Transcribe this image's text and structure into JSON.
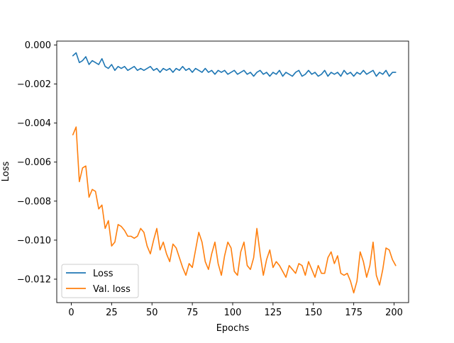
{
  "colors": {
    "series_loss": "#1f77b4",
    "series_val_loss": "#ff7f0e",
    "axis": "#000000",
    "background": "#ffffff"
  },
  "chart_data": {
    "type": "line",
    "title": "",
    "xlabel": "Epochs",
    "ylabel": "Loss",
    "xlim": [
      -9,
      209
    ],
    "ylim": [
      -0.0132,
      0.0002
    ],
    "xticks": [
      0,
      25,
      50,
      75,
      100,
      125,
      150,
      175,
      200
    ],
    "xtick_labels": [
      "0",
      "25",
      "50",
      "75",
      "100",
      "125",
      "150",
      "175",
      "200"
    ],
    "yticks": [
      0.0,
      -0.002,
      -0.004,
      -0.006,
      -0.008,
      -0.01,
      -0.012
    ],
    "ytick_labels": [
      "0.000",
      "−0.002",
      "−0.004",
      "−0.006",
      "−0.008",
      "−0.010",
      "−0.012"
    ],
    "grid": false,
    "legend": {
      "placement": "lower-left",
      "entries": [
        "Loss",
        "Val. loss"
      ]
    },
    "series": [
      {
        "name": "Loss",
        "color": "#1f77b4",
        "x": [
          1,
          3,
          5,
          7,
          9,
          11,
          13,
          15,
          17,
          19,
          21,
          23,
          25,
          27,
          29,
          31,
          33,
          35,
          37,
          39,
          41,
          43,
          45,
          47,
          49,
          51,
          53,
          55,
          57,
          59,
          61,
          63,
          65,
          67,
          69,
          71,
          73,
          75,
          77,
          79,
          81,
          83,
          85,
          87,
          89,
          91,
          93,
          95,
          97,
          99,
          101,
          103,
          105,
          107,
          109,
          111,
          113,
          115,
          117,
          119,
          121,
          123,
          125,
          127,
          129,
          131,
          133,
          135,
          137,
          139,
          141,
          143,
          145,
          147,
          149,
          151,
          153,
          155,
          157,
          159,
          161,
          163,
          165,
          167,
          169,
          171,
          173,
          175,
          177,
          179,
          181,
          183,
          185,
          187,
          189,
          191,
          193,
          195,
          197,
          199,
          201
        ],
        "y": [
          -0.00055,
          -0.0004,
          -0.0009,
          -0.0008,
          -0.0006,
          -0.001,
          -0.0008,
          -0.0009,
          -0.001,
          -0.0007,
          -0.0011,
          -0.0012,
          -0.001,
          -0.0013,
          -0.0011,
          -0.0012,
          -0.0011,
          -0.0013,
          -0.0012,
          -0.0011,
          -0.0013,
          -0.0012,
          -0.0013,
          -0.0012,
          -0.0011,
          -0.0013,
          -0.0012,
          -0.0014,
          -0.0012,
          -0.0013,
          -0.0012,
          -0.0014,
          -0.0012,
          -0.0013,
          -0.0011,
          -0.0013,
          -0.0012,
          -0.0014,
          -0.0012,
          -0.0013,
          -0.0014,
          -0.0012,
          -0.0014,
          -0.0013,
          -0.0015,
          -0.0013,
          -0.0014,
          -0.0013,
          -0.0015,
          -0.0014,
          -0.0013,
          -0.0015,
          -0.0014,
          -0.0013,
          -0.0015,
          -0.0014,
          -0.0016,
          -0.0014,
          -0.0013,
          -0.0015,
          -0.0014,
          -0.0016,
          -0.0014,
          -0.0015,
          -0.0013,
          -0.0016,
          -0.0014,
          -0.0015,
          -0.0016,
          -0.0014,
          -0.0013,
          -0.0016,
          -0.0015,
          -0.0013,
          -0.0015,
          -0.0014,
          -0.0016,
          -0.0015,
          -0.0013,
          -0.0016,
          -0.0014,
          -0.0015,
          -0.0014,
          -0.0016,
          -0.0013,
          -0.0015,
          -0.0014,
          -0.0016,
          -0.0014,
          -0.0015,
          -0.0013,
          -0.0015,
          -0.0014,
          -0.0013,
          -0.0016,
          -0.0014,
          -0.0015,
          -0.0013,
          -0.0016,
          -0.0014,
          -0.0014
        ]
      },
      {
        "name": "Val. loss",
        "color": "#ff7f0e",
        "x": [
          1,
          3,
          5,
          7,
          9,
          11,
          13,
          15,
          17,
          19,
          21,
          23,
          25,
          27,
          29,
          31,
          33,
          35,
          37,
          39,
          41,
          43,
          45,
          47,
          49,
          51,
          53,
          55,
          57,
          59,
          61,
          63,
          65,
          67,
          69,
          71,
          73,
          75,
          77,
          79,
          81,
          83,
          85,
          87,
          89,
          91,
          93,
          95,
          97,
          99,
          101,
          103,
          105,
          107,
          109,
          111,
          113,
          115,
          117,
          119,
          121,
          123,
          125,
          127,
          129,
          131,
          133,
          135,
          137,
          139,
          141,
          143,
          145,
          147,
          149,
          151,
          153,
          155,
          157,
          159,
          161,
          163,
          165,
          167,
          169,
          171,
          173,
          175,
          177,
          179,
          181,
          183,
          185,
          187,
          189,
          191,
          193,
          195,
          197,
          199,
          201
        ],
        "y": [
          -0.0046,
          -0.0042,
          -0.007,
          -0.0063,
          -0.0062,
          -0.0078,
          -0.0074,
          -0.0075,
          -0.0084,
          -0.0082,
          -0.0094,
          -0.009,
          -0.0103,
          -0.0101,
          -0.0092,
          -0.0093,
          -0.0095,
          -0.0098,
          -0.0098,
          -0.0099,
          -0.0098,
          -0.0094,
          -0.0096,
          -0.0103,
          -0.0107,
          -0.01,
          -0.0094,
          -0.0105,
          -0.0101,
          -0.0107,
          -0.0111,
          -0.0102,
          -0.0104,
          -0.0109,
          -0.0114,
          -0.0118,
          -0.0112,
          -0.0114,
          -0.0105,
          -0.0096,
          -0.0101,
          -0.0111,
          -0.0115,
          -0.0107,
          -0.0101,
          -0.0112,
          -0.0118,
          -0.0108,
          -0.0101,
          -0.0104,
          -0.0116,
          -0.0118,
          -0.0106,
          -0.0101,
          -0.0113,
          -0.0115,
          -0.0109,
          -0.0094,
          -0.0107,
          -0.0118,
          -0.011,
          -0.0105,
          -0.0114,
          -0.0111,
          -0.0113,
          -0.0116,
          -0.0119,
          -0.0113,
          -0.0115,
          -0.0117,
          -0.0112,
          -0.0113,
          -0.0118,
          -0.0111,
          -0.0115,
          -0.0119,
          -0.0113,
          -0.0117,
          -0.0117,
          -0.0109,
          -0.0106,
          -0.0112,
          -0.0108,
          -0.0117,
          -0.0118,
          -0.0117,
          -0.0121,
          -0.0127,
          -0.0121,
          -0.0106,
          -0.0111,
          -0.0119,
          -0.0113,
          -0.0101,
          -0.0118,
          -0.0123,
          -0.0115,
          -0.0104,
          -0.0105,
          -0.011,
          -0.0113
        ]
      }
    ]
  }
}
